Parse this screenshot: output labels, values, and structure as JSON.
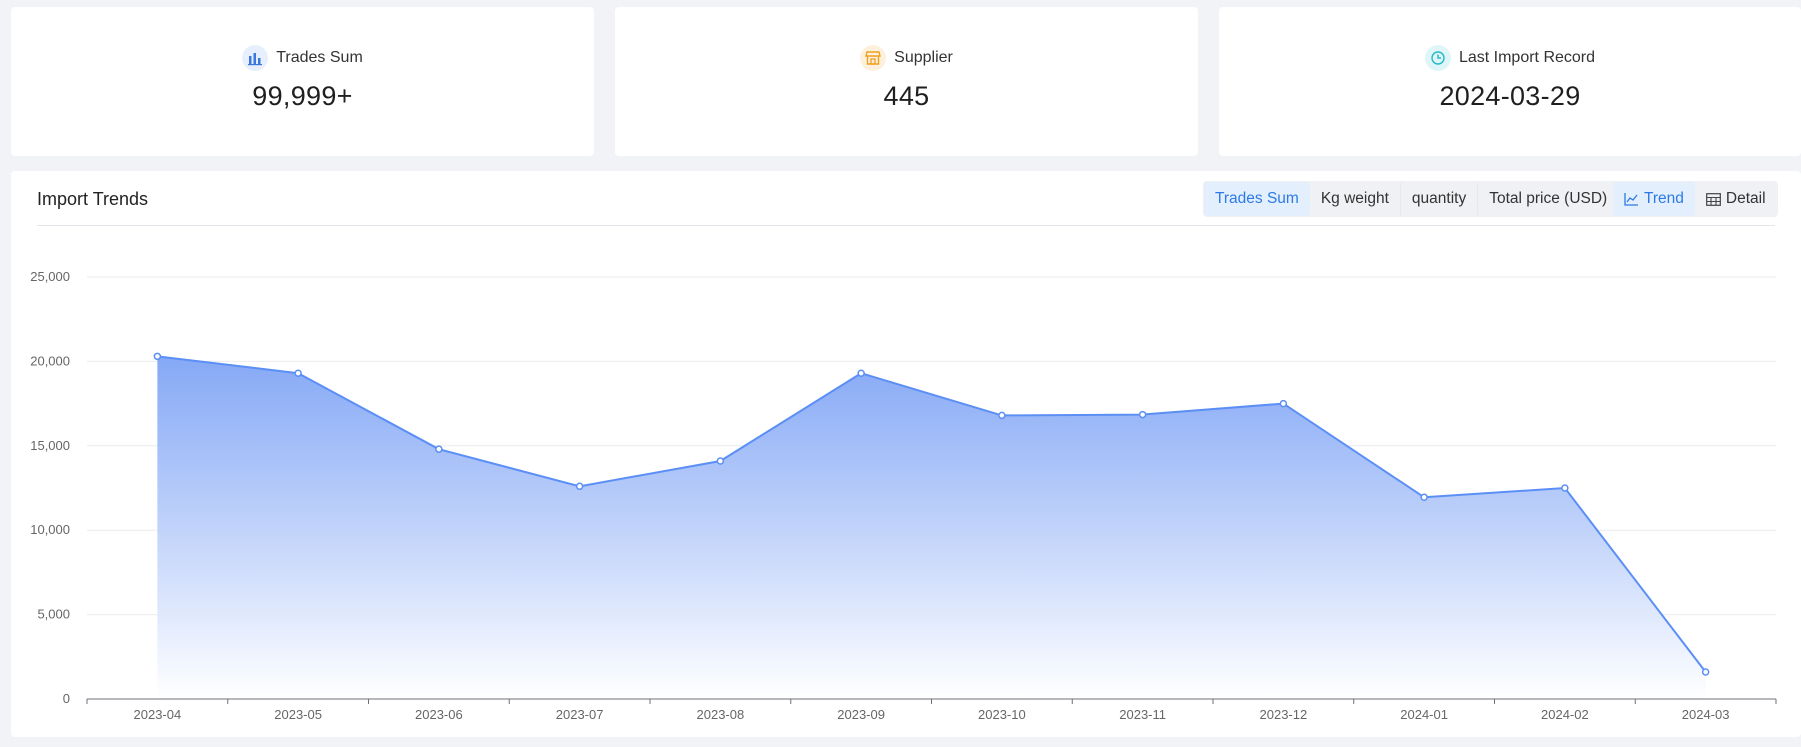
{
  "stats": [
    {
      "label": "Trades Sum",
      "value": "99,999+",
      "icon": "bar-chart-icon",
      "icon_color": "#3a78e0",
      "icon_bg": "#e8effc"
    },
    {
      "label": "Supplier",
      "value": "445",
      "icon": "store-icon",
      "icon_color": "#f0a020",
      "icon_bg": "#fdf1dd"
    },
    {
      "label": "Last Import Record",
      "value": "2024-03-29",
      "icon": "clock-icon",
      "icon_color": "#22b8c8",
      "icon_bg": "#dff6f8"
    }
  ],
  "chart_card": {
    "title": "Import Trends",
    "metric_tabs": [
      "Trades Sum",
      "Kg weight",
      "quantity",
      "Total price (USD)"
    ],
    "active_metric": "Trades Sum",
    "view_tabs": {
      "trend": "Trend",
      "detail": "Detail"
    },
    "active_view": "Trend"
  },
  "colors": {
    "accent": "#5b8ff5",
    "area_top": "#7fa4f5",
    "area_bottom": "#ffffff",
    "active_text": "#2d7ae6"
  },
  "chart_data": {
    "type": "area",
    "title": "",
    "xlabel": "",
    "ylabel": "",
    "x": [
      "2023-04",
      "2023-05",
      "2023-06",
      "2023-07",
      "2023-08",
      "2023-09",
      "2023-10",
      "2023-11",
      "2023-12",
      "2024-01",
      "2024-02",
      "2024-03"
    ],
    "series": [
      {
        "values": [
          20300,
          19300,
          14800,
          12600,
          14100,
          19300,
          16800,
          16850,
          17500,
          11950,
          12500,
          1600
        ]
      }
    ],
    "ylim": [
      0,
      25000
    ],
    "yticks": [
      "0",
      "5,000",
      "10,000",
      "15,000",
      "20,000",
      "25,000"
    ],
    "grid": true
  }
}
